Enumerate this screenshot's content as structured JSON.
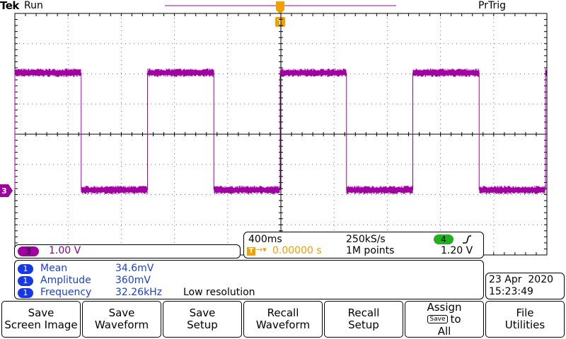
{
  "header": {
    "brand": "Tek",
    "state": "Run",
    "trigger_status": "PrTrig"
  },
  "trigger_marker": {
    "label": "T"
  },
  "channel_marker": {
    "label": "3"
  },
  "channel": {
    "number": "3",
    "scale": "1.00 V",
    "color": "#a000a0"
  },
  "timebase": {
    "time_per_div": "400ms",
    "sample_rate": "250kS/s",
    "trigger_position": "0.00000 s",
    "record_length": "1M points",
    "trigger_channel": "4",
    "trigger_slope_icon": "rising-edge-icon",
    "trigger_level": "1.20 V"
  },
  "measurements": [
    {
      "badge": "1",
      "name": "Mean",
      "value": "34.6mV",
      "note": ""
    },
    {
      "badge": "1",
      "name": "Amplitude",
      "value": "360mV",
      "note": ""
    },
    {
      "badge": "1",
      "name": "Frequency",
      "value": "32.26kHz",
      "note": "Low resolution"
    }
  ],
  "clock": {
    "date": "23 Apr  2020",
    "time": "15:23:49"
  },
  "softkeys": [
    {
      "line1": "Save",
      "line2": "Screen Image"
    },
    {
      "line1": "Save",
      "line2": "Waveform"
    },
    {
      "line1": "Save",
      "line2": "Setup"
    },
    {
      "line1": "Recall",
      "line2": "Waveform"
    },
    {
      "line1": "Recall",
      "line2": "Setup"
    },
    {
      "line1": "Assign",
      "line2": "Save",
      "line3": "to",
      "line4": "All"
    },
    {
      "line1": "File",
      "line2": "Utilities"
    }
  ],
  "colors": {
    "trace": "#a000a0",
    "trigger": "#f0a000",
    "measure_badge": "#1638e8",
    "trigger_ch_badge": "#20b020"
  }
}
